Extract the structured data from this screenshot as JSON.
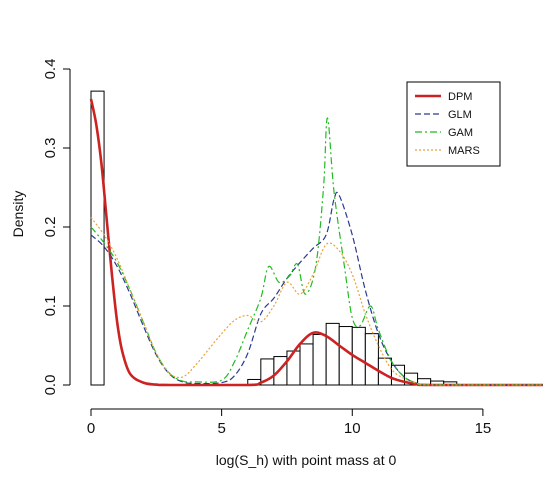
{
  "chart_data": {
    "type": "histogram_density",
    "title": "",
    "xlabel": "log(S_h) with point mass at 0",
    "ylabel": "Density",
    "xlim": [
      0,
      17.3
    ],
    "ylim": [
      0,
      0.4
    ],
    "x_ticks": [
      "0",
      "5",
      "10",
      "15"
    ],
    "y_ticks": [
      "0.0",
      "0.1",
      "0.2",
      "0.3",
      "0.4"
    ],
    "grid": false,
    "legend_position": "top-right",
    "histogram": {
      "point_mass_bar": {
        "x0": 0,
        "x1": 0.5,
        "height": 0.372
      },
      "bin_width": 0.5,
      "bins": [
        {
          "x0": 6.0,
          "height": 0.007
        },
        {
          "x0": 6.5,
          "height": 0.033
        },
        {
          "x0": 7.0,
          "height": 0.036
        },
        {
          "x0": 7.5,
          "height": 0.043
        },
        {
          "x0": 8.0,
          "height": 0.052
        },
        {
          "x0": 8.5,
          "height": 0.064
        },
        {
          "x0": 9.0,
          "height": 0.078
        },
        {
          "x0": 9.5,
          "height": 0.074
        },
        {
          "x0": 10.0,
          "height": 0.073
        },
        {
          "x0": 10.5,
          "height": 0.065
        },
        {
          "x0": 11.0,
          "height": 0.034
        },
        {
          "x0": 11.5,
          "height": 0.025
        },
        {
          "x0": 12.0,
          "height": 0.015
        },
        {
          "x0": 12.5,
          "height": 0.008
        },
        {
          "x0": 13.0,
          "height": 0.005
        },
        {
          "x0": 13.5,
          "height": 0.004
        }
      ]
    },
    "series": [
      {
        "name": "DPM",
        "color": "#cc2222",
        "style": "solid",
        "points": [
          [
            0,
            0.362
          ],
          [
            0.2,
            0.33
          ],
          [
            0.4,
            0.28
          ],
          [
            0.6,
            0.21
          ],
          [
            0.8,
            0.14
          ],
          [
            1.0,
            0.08
          ],
          [
            1.2,
            0.042
          ],
          [
            1.5,
            0.014
          ],
          [
            2.0,
            0.003
          ],
          [
            2.5,
            0.0005
          ],
          [
            3.0,
            0
          ],
          [
            6.0,
            0
          ],
          [
            6.5,
            0.003
          ],
          [
            7.0,
            0.012
          ],
          [
            7.5,
            0.03
          ],
          [
            8.0,
            0.052
          ],
          [
            8.5,
            0.066
          ],
          [
            9.0,
            0.062
          ],
          [
            9.5,
            0.05
          ],
          [
            10.0,
            0.038
          ],
          [
            10.5,
            0.028
          ],
          [
            11.0,
            0.018
          ],
          [
            11.5,
            0.009
          ],
          [
            12.0,
            0.004
          ],
          [
            12.5,
            0.001
          ],
          [
            13.0,
            0
          ],
          [
            17.3,
            0
          ]
        ]
      },
      {
        "name": "GLM",
        "color": "#2b3a8f",
        "style": "dashed",
        "points": [
          [
            0,
            0.19
          ],
          [
            0.5,
            0.175
          ],
          [
            1.0,
            0.15
          ],
          [
            1.5,
            0.115
          ],
          [
            2.0,
            0.075
          ],
          [
            2.5,
            0.038
          ],
          [
            3.0,
            0.014
          ],
          [
            3.5,
            0.004
          ],
          [
            4.0,
            0.002
          ],
          [
            5.0,
            0.003
          ],
          [
            5.5,
            0.012
          ],
          [
            6.0,
            0.04
          ],
          [
            6.5,
            0.09
          ],
          [
            7.0,
            0.11
          ],
          [
            7.5,
            0.135
          ],
          [
            8.0,
            0.155
          ],
          [
            8.5,
            0.173
          ],
          [
            9.0,
            0.19
          ],
          [
            9.3,
            0.235
          ],
          [
            9.5,
            0.24
          ],
          [
            10.0,
            0.19
          ],
          [
            10.5,
            0.12
          ],
          [
            11.0,
            0.065
          ],
          [
            11.5,
            0.03
          ],
          [
            12.0,
            0.01
          ],
          [
            12.5,
            0.002
          ],
          [
            13.0,
            0
          ],
          [
            17.3,
            0
          ]
        ]
      },
      {
        "name": "GAM",
        "color": "#22bb22",
        "style": "dashdot",
        "points": [
          [
            0,
            0.2
          ],
          [
            0.5,
            0.18
          ],
          [
            1.0,
            0.155
          ],
          [
            1.5,
            0.12
          ],
          [
            2.0,
            0.08
          ],
          [
            2.5,
            0.04
          ],
          [
            3.0,
            0.015
          ],
          [
            3.5,
            0.005
          ],
          [
            4.0,
            0.004
          ],
          [
            5.0,
            0.006
          ],
          [
            5.5,
            0.03
          ],
          [
            6.0,
            0.07
          ],
          [
            6.5,
            0.11
          ],
          [
            6.8,
            0.15
          ],
          [
            7.2,
            0.13
          ],
          [
            7.6,
            0.138
          ],
          [
            7.9,
            0.153
          ],
          [
            8.2,
            0.115
          ],
          [
            8.6,
            0.15
          ],
          [
            8.9,
            0.25
          ],
          [
            9.05,
            0.338
          ],
          [
            9.3,
            0.245
          ],
          [
            9.7,
            0.15
          ],
          [
            10.0,
            0.085
          ],
          [
            10.3,
            0.075
          ],
          [
            10.7,
            0.1
          ],
          [
            11.0,
            0.07
          ],
          [
            11.5,
            0.03
          ],
          [
            12.0,
            0.01
          ],
          [
            12.5,
            0.002
          ],
          [
            13.0,
            0
          ],
          [
            17.3,
            0
          ]
        ]
      },
      {
        "name": "MARS",
        "color": "#e8a23a",
        "style": "dotted",
        "points": [
          [
            0,
            0.212
          ],
          [
            0.5,
            0.19
          ],
          [
            1.0,
            0.16
          ],
          [
            1.5,
            0.12
          ],
          [
            2.0,
            0.08
          ],
          [
            2.5,
            0.04
          ],
          [
            3.0,
            0.015
          ],
          [
            3.5,
            0.01
          ],
          [
            4.0,
            0.025
          ],
          [
            4.5,
            0.045
          ],
          [
            5.0,
            0.065
          ],
          [
            5.5,
            0.082
          ],
          [
            6.0,
            0.088
          ],
          [
            6.5,
            0.08
          ],
          [
            7.0,
            0.1
          ],
          [
            7.5,
            0.13
          ],
          [
            8.0,
            0.115
          ],
          [
            8.5,
            0.14
          ],
          [
            9.0,
            0.178
          ],
          [
            9.5,
            0.17
          ],
          [
            10.0,
            0.14
          ],
          [
            10.5,
            0.09
          ],
          [
            11.0,
            0.05
          ],
          [
            11.5,
            0.02
          ],
          [
            12.0,
            0.008
          ],
          [
            12.5,
            0.002
          ],
          [
            13.0,
            0
          ],
          [
            17.3,
            0
          ]
        ]
      }
    ]
  }
}
